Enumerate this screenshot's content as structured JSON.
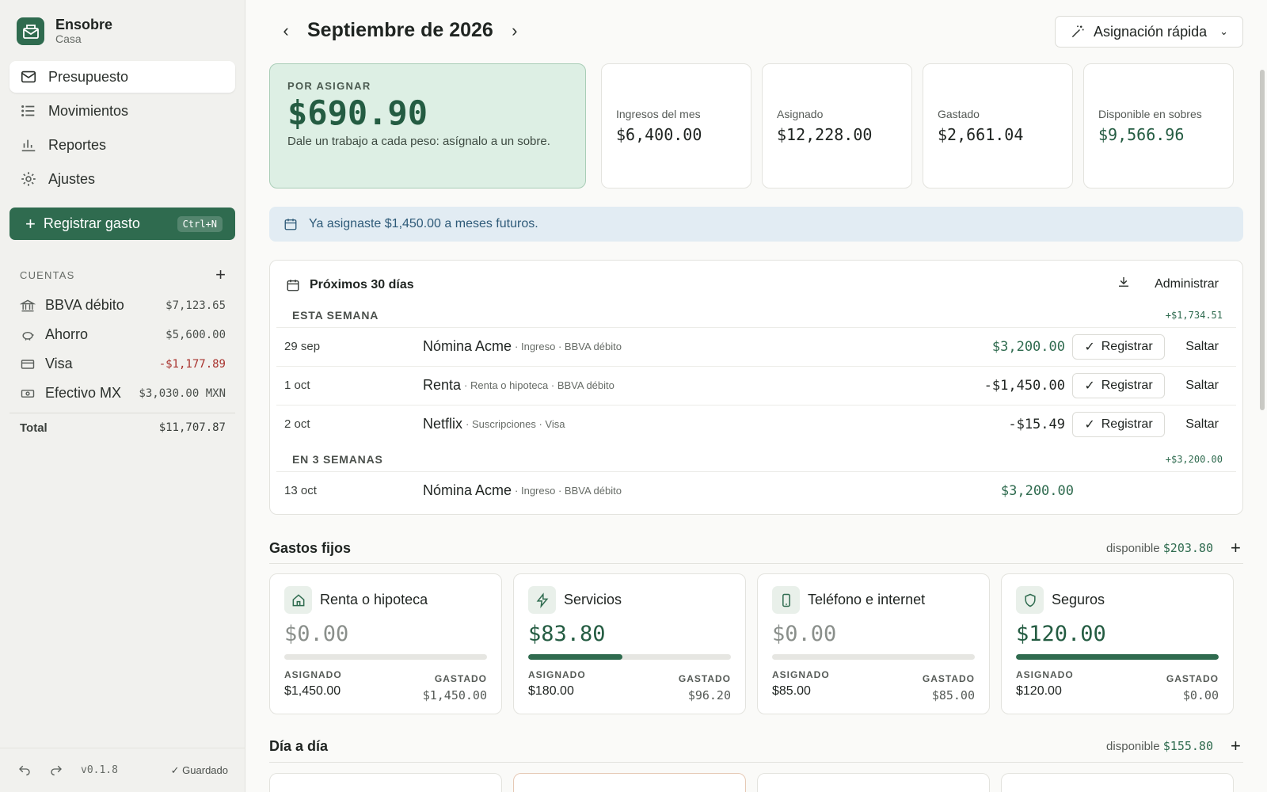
{
  "sidebar": {
    "brand": {
      "name": "Ensobre",
      "sub": "Casa"
    },
    "nav": [
      {
        "label": "Presupuesto"
      },
      {
        "label": "Movimientos"
      },
      {
        "label": "Reportes"
      },
      {
        "label": "Ajustes"
      }
    ],
    "cta": {
      "label": "Registrar gasto",
      "shortcut": "Ctrl+N"
    },
    "accounts_title": "CUENTAS",
    "accounts": [
      {
        "name": "BBVA débito",
        "balance": "$7,123.65"
      },
      {
        "name": "Ahorro",
        "balance": "$5,600.00"
      },
      {
        "name": "Visa",
        "balance": "-$1,177.89"
      },
      {
        "name": "Efectivo MX",
        "balance": "$3,030.00 MXN"
      }
    ],
    "total": {
      "label": "Total",
      "value": "$11,707.87"
    },
    "footer": {
      "version": "v0.1.8",
      "saved": "Guardado"
    }
  },
  "header": {
    "month": "Septiembre de 2026",
    "quick_assign": "Asignación rápida"
  },
  "summary": {
    "to_assign": {
      "label": "POR ASIGNAR",
      "amount": "$690.90",
      "hint": "Dale un trabajo a cada peso: asígnalo a un sobre."
    },
    "stats": [
      {
        "label": "Ingresos del mes",
        "value": "$6,400.00"
      },
      {
        "label": "Asignado",
        "value": "$12,228.00"
      },
      {
        "label": "Gastado",
        "value": "$2,661.04"
      },
      {
        "label": "Disponible en sobres",
        "value": "$9,566.96"
      }
    ]
  },
  "banner": "Ya asignaste $1,450.00 a meses futuros.",
  "upcoming": {
    "title": "Próximos 30 días",
    "manage": "Administrar",
    "register": "Registrar",
    "skip": "Saltar",
    "groups": [
      {
        "label": "ESTA SEMANA",
        "total": "+$1,734.51",
        "rows": [
          {
            "date": "29 sep",
            "name": "Nómina Acme",
            "meta": "· Ingreso · BBVA débito",
            "amount": "$3,200.00"
          },
          {
            "date": "1 oct",
            "name": "Renta",
            "meta": "· Renta o hipoteca · BBVA débito",
            "amount": "-$1,450.00"
          },
          {
            "date": "2 oct",
            "name": "Netflix",
            "meta": "· Suscripciones · Visa",
            "amount": "-$15.49"
          }
        ]
      },
      {
        "label": "EN 3 SEMANAS",
        "total": "+$3,200.00",
        "rows": [
          {
            "date": "13 oct",
            "name": "Nómina Acme",
            "meta": "· Ingreso · BBVA débito",
            "amount": "$3,200.00"
          }
        ]
      }
    ]
  },
  "fixed": {
    "title": "Gastos fijos",
    "available_label": "disponible",
    "available": "$203.80",
    "assigned_label": "ASIGNADO",
    "spent_label": "GASTADO",
    "envelopes": [
      {
        "name": "Renta o hipoteca",
        "icon": "home-icon",
        "available": "$0.00",
        "progress": 0.0,
        "assigned": "$1,450.00",
        "spent": "$1,450.00"
      },
      {
        "name": "Servicios",
        "icon": "bolt-icon",
        "available": "$83.80",
        "progress": 0.465,
        "assigned": "$180.00",
        "spent": "$96.20"
      },
      {
        "name": "Teléfono e internet",
        "icon": "phone-icon",
        "available": "$0.00",
        "progress": 0.0,
        "assigned": "$85.00",
        "spent": "$85.00"
      },
      {
        "name": "Seguros",
        "icon": "shield-icon",
        "available": "$120.00",
        "progress": 1.0,
        "assigned": "$120.00",
        "spent": "$0.00"
      }
    ]
  },
  "daily": {
    "title": "Día a día",
    "available_label": "disponible",
    "available": "$155.80"
  },
  "colors": {
    "accent": "#2f6b4f",
    "negative": "#a8322d",
    "info_bg": "#e2ecf3"
  }
}
